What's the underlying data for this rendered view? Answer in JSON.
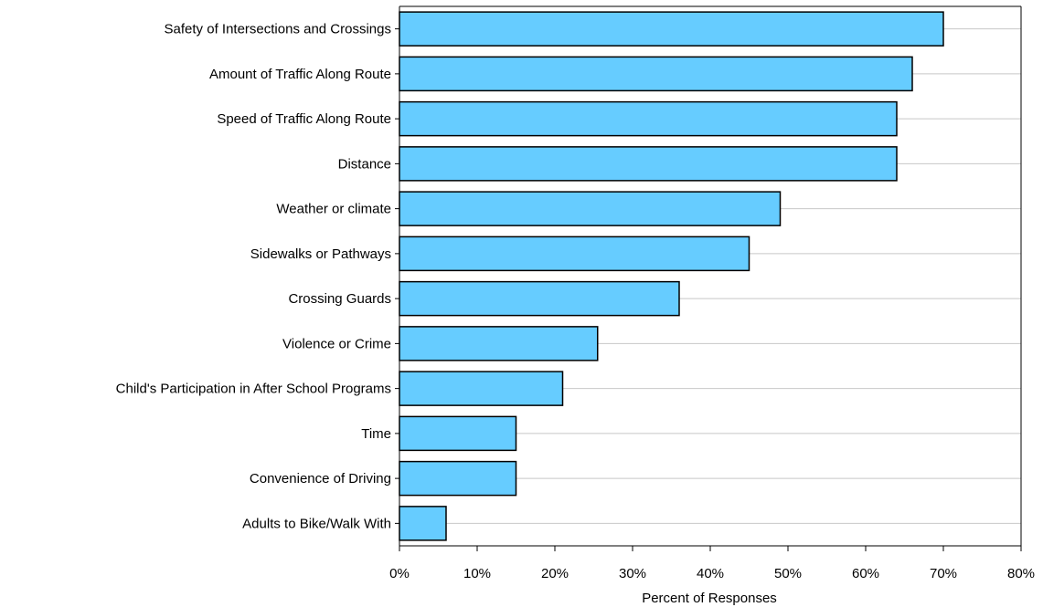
{
  "chart_data": {
    "type": "bar",
    "orientation": "horizontal",
    "categories": [
      "Safety of Intersections and Crossings",
      "Amount of Traffic Along Route",
      "Speed of Traffic Along Route",
      "Distance",
      "Weather or climate",
      "Sidewalks or Pathways",
      "Crossing Guards",
      "Violence or Crime",
      "Child's Participation in After School Programs",
      "Time",
      "Convenience of Driving",
      "Adults to Bike/Walk With"
    ],
    "values": [
      70,
      66,
      64,
      64,
      49,
      45,
      36,
      25.5,
      21,
      15,
      15,
      6
    ],
    "xlabel": "Percent of Responses",
    "ylabel": "",
    "xlim": [
      0,
      80
    ],
    "xticks": [
      0,
      10,
      20,
      30,
      40,
      50,
      60,
      70,
      80
    ],
    "xtick_labels": [
      "0%",
      "10%",
      "20%",
      "30%",
      "40%",
      "50%",
      "60%",
      "70%",
      "80%"
    ],
    "grid": "horizontal lines",
    "legend": "none",
    "colors": {
      "bar_fill": "#66ccff",
      "bar_stroke": "#000000",
      "grid": "#c8c8c8"
    }
  }
}
